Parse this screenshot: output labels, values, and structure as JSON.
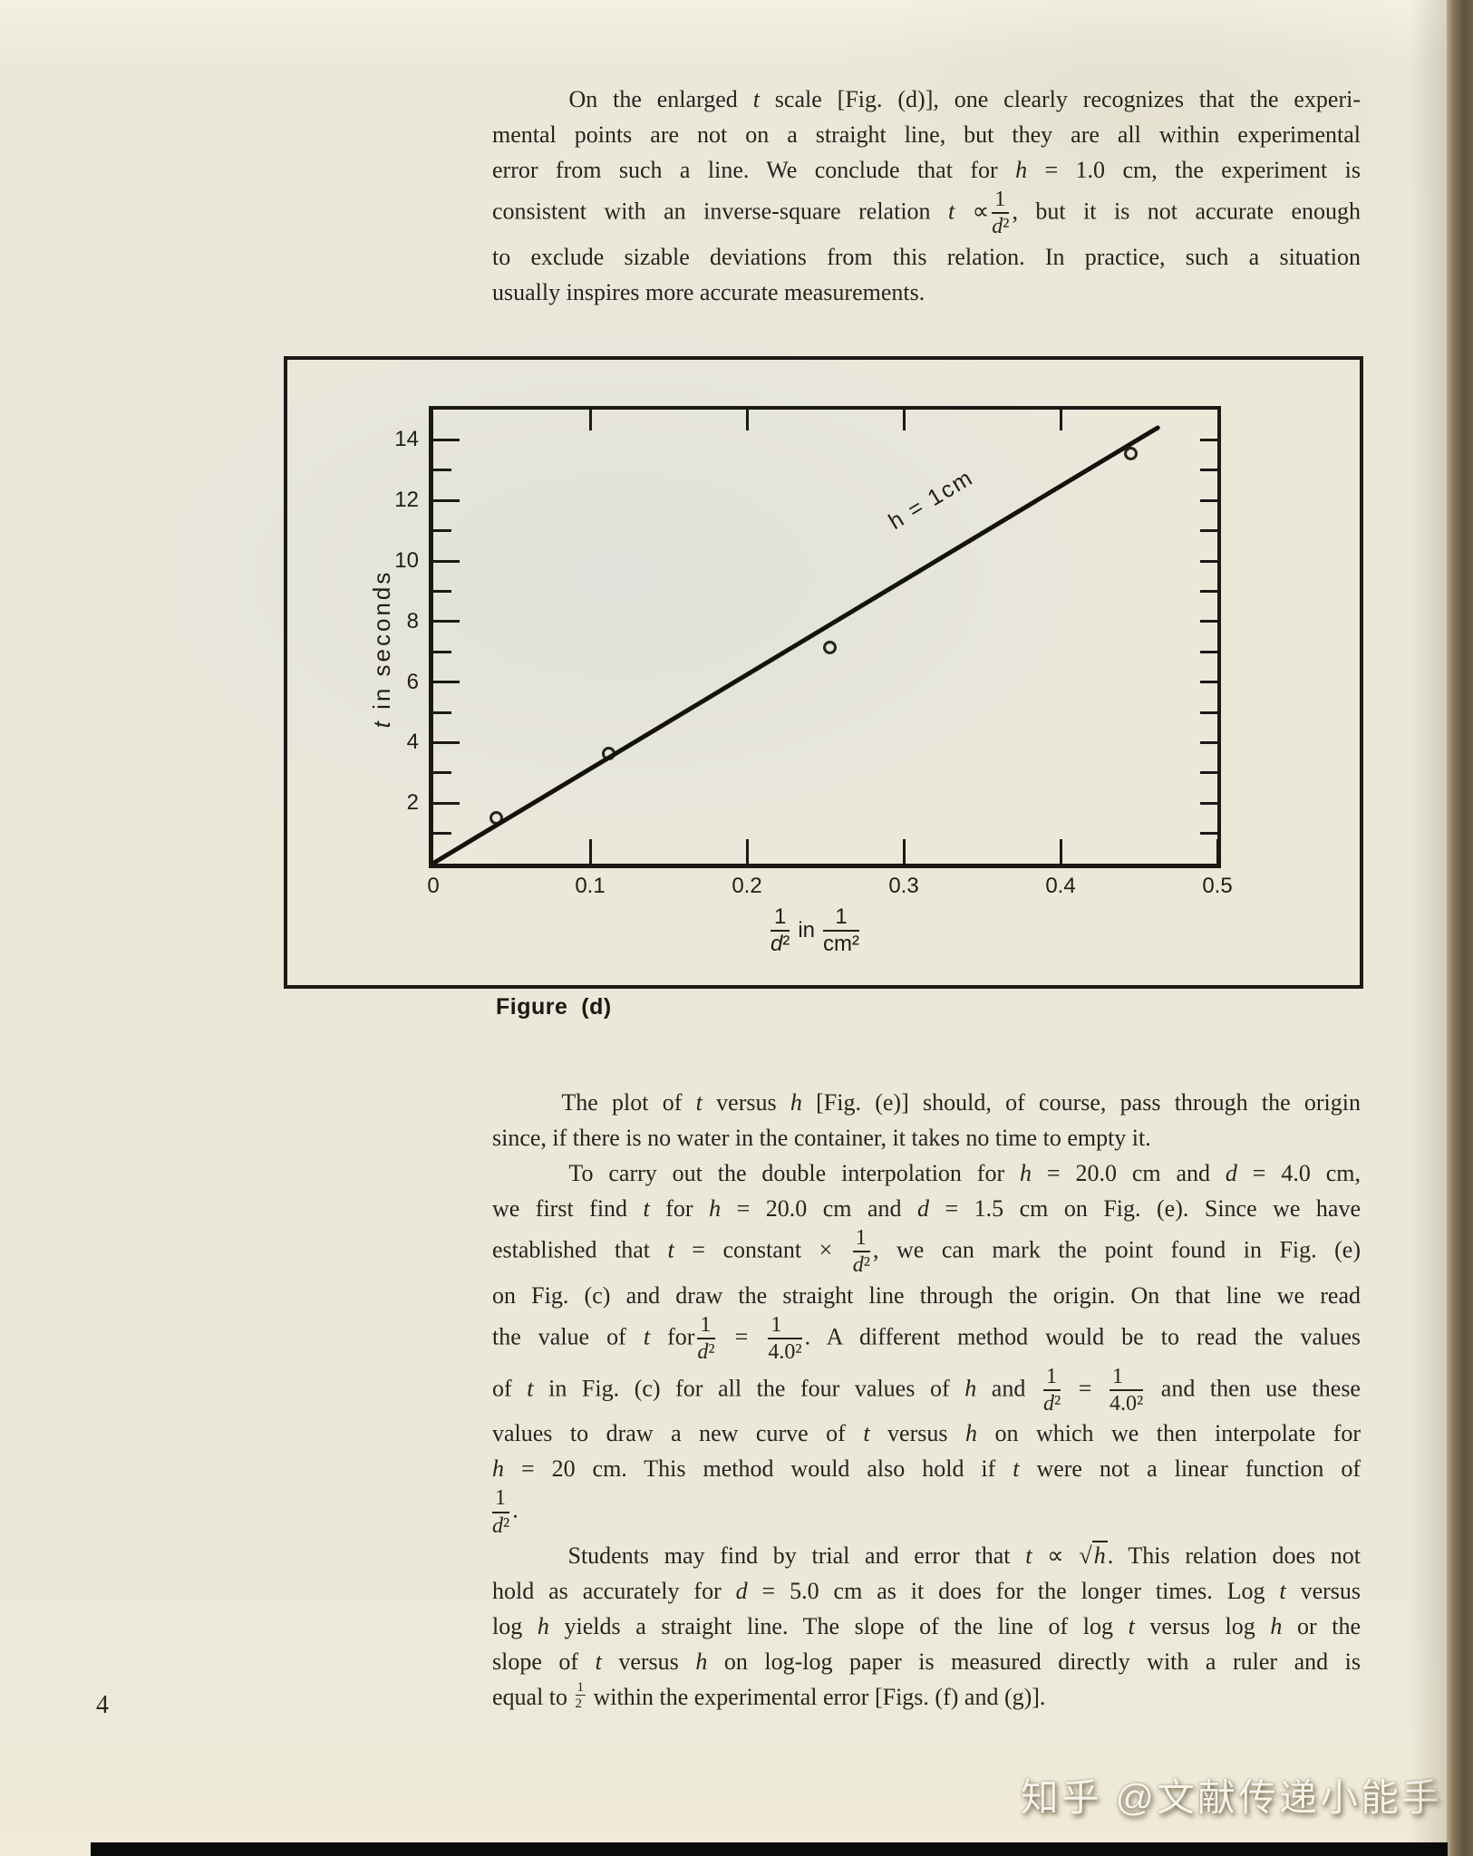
{
  "page": {
    "number": "4",
    "watermark": "知乎 @文献传递小能手"
  },
  "paragraph_top": {
    "lines": [
      {
        "h": "&nbsp;&nbsp;&nbsp;&nbsp;&nbsp;On the enlarged <i>t</i> scale [Fig. (d)], one clearly recognizes that the experi-",
        "last": false
      },
      {
        "h": "mental points are not on a straight line, but they are all within experimental",
        "last": false
      },
      {
        "h": "error from such a line. We conclude that for <i>h</i> = 1.0 cm, the experiment is",
        "last": false
      },
      {
        "h": "consistent with an inverse-square relation <i>t</i> ∝<span class=\"fr\"><span class=\"fn\">1</span><span class=\"fd\"><i>d</i>²</span></span>, but it is not accurate enough",
        "last": false
      },
      {
        "h": "to exclude sizable deviations from this relation. In practice, such a situation",
        "last": false
      },
      {
        "h": "usually inspires more accurate measurements.",
        "last": true
      }
    ]
  },
  "figure": {
    "caption": "Figure  (d)",
    "y_title_html": "<i>t</i> in seconds",
    "x_title": {
      "num1": "1",
      "den1_html": "<i>d</i>²",
      "mid": "in",
      "num2": "1",
      "den2_html": "cm²"
    }
  },
  "chart_data": {
    "type": "scatter",
    "title": "",
    "xlabel": "1/d² in 1/cm²",
    "ylabel": "t in seconds",
    "xlim": [
      0,
      0.5
    ],
    "ylim": [
      0,
      15
    ],
    "grid": false,
    "legend": "none",
    "x_tick_values": [
      0,
      0.1,
      0.2,
      0.3,
      0.4,
      0.5
    ],
    "x_tick_labels": [
      "0",
      "0.1",
      "0.2",
      "0.3",
      "0.4",
      "0.5"
    ],
    "x_bottom_ticks": [
      0.1,
      0.2,
      0.3,
      0.4,
      0.5
    ],
    "x_top_ticks": [
      0.1,
      0.2,
      0.3,
      0.4
    ],
    "y_tick_values": [
      2,
      4,
      6,
      8,
      10,
      12,
      14
    ],
    "y_tick_labels": [
      "2",
      "4",
      "6",
      "8",
      "10",
      "12",
      "14"
    ],
    "y_minor_ticks": [
      1,
      2,
      3,
      4,
      5,
      6,
      7,
      8,
      9,
      10,
      11,
      12,
      13,
      14
    ],
    "points": [
      [
        0.04,
        1.5
      ],
      [
        0.112,
        3.65
      ],
      [
        0.253,
        7.15
      ],
      [
        0.445,
        13.55
      ]
    ],
    "fit_line": {
      "x0": 0,
      "y0": 0,
      "x1": 0.463,
      "y1": 14.42,
      "label": "h = 1cm"
    }
  },
  "paragraph_mid": {
    "lines": [
      {
        "h": "&nbsp;&nbsp;&nbsp;&nbsp;&nbsp;The plot of <i>t</i> versus <i>h</i> [Fig. (e)] should, of course, pass through the origin",
        "last": false
      },
      {
        "h": "since, if there is no water in the container, it takes no time to empty it.",
        "last": true
      },
      {
        "h": "&nbsp;&nbsp;&nbsp;&nbsp;&nbsp;To carry out the double interpolation for <i>h</i> = 20.0 cm and <i>d</i> = 4.0 cm,",
        "last": false
      },
      {
        "h": "we first find <i>t</i> for <i>h</i> = 20.0 cm and <i>d</i> = 1.5 cm on Fig. (e). Since we have",
        "last": false
      },
      {
        "h": "established that <i>t</i> = constant × <span class=\"fr\"><span class=\"fn\">1</span><span class=\"fd\"><i>d</i>²</span></span>, we can mark the point found in Fig. (e)",
        "last": false
      },
      {
        "h": "on Fig. (c) and draw the straight line through the origin. On that line we read",
        "last": false
      },
      {
        "h": "the value of <i>t</i> for<span class=\"fr\"><span class=\"fn\">1</span><span class=\"fd\"><i>d</i>²</span></span> = <span class=\"fr\"><span class=\"fn\">1</span><span class=\"fd\">4.0²</span></span>. A different method would be to read the values",
        "last": false
      },
      {
        "h": "of <i>t</i> in Fig. (c) for all the four values of <i>h</i> and <span class=\"fr\"><span class=\"fn\">1</span><span class=\"fd\"><i>d</i>²</span></span> = <span class=\"fr\"><span class=\"fn\">1</span><span class=\"fd\">4.0²</span></span> and then use these",
        "last": false
      },
      {
        "h": "values to draw a new curve of <i>t</i> versus <i>h</i> on which we then interpolate for",
        "last": false
      },
      {
        "h": "<i>h</i> = 20 cm. This method would also hold if <i>t</i> were not a linear function of",
        "last": false
      },
      {
        "h": "<span class=\"fr\" style=\"margin-left:0\"><span class=\"fn\">1</span><span class=\"fd\"><i>d</i>²</span></span>.",
        "last": true
      },
      {
        "h": "&nbsp;&nbsp;&nbsp;&nbsp;&nbsp;Students may find by trial and error that <i>t</i> ∝ √<span class=\"ov\"><i>h</i></span>. This relation does not",
        "last": false
      },
      {
        "h": "hold as accurately for <i>d</i> = 5.0 cm as it does for the longer times. Log <i>t</i> versus",
        "last": false
      },
      {
        "h": "log <i>h</i> yields a straight line. The slope of the line of log <i>t</i> versus log <i>h</i> or the",
        "last": false
      },
      {
        "h": "slope of <i>t</i> versus <i>h</i> on log-log paper is measured directly with a ruler and is",
        "last": false
      },
      {
        "h": "equal to <span class=\"fr half\"><span class=\"fn\">1</span><span class=\"fd\">2</span></span> within the experimental error [Figs. (f) and (g)].",
        "last": true
      }
    ]
  }
}
